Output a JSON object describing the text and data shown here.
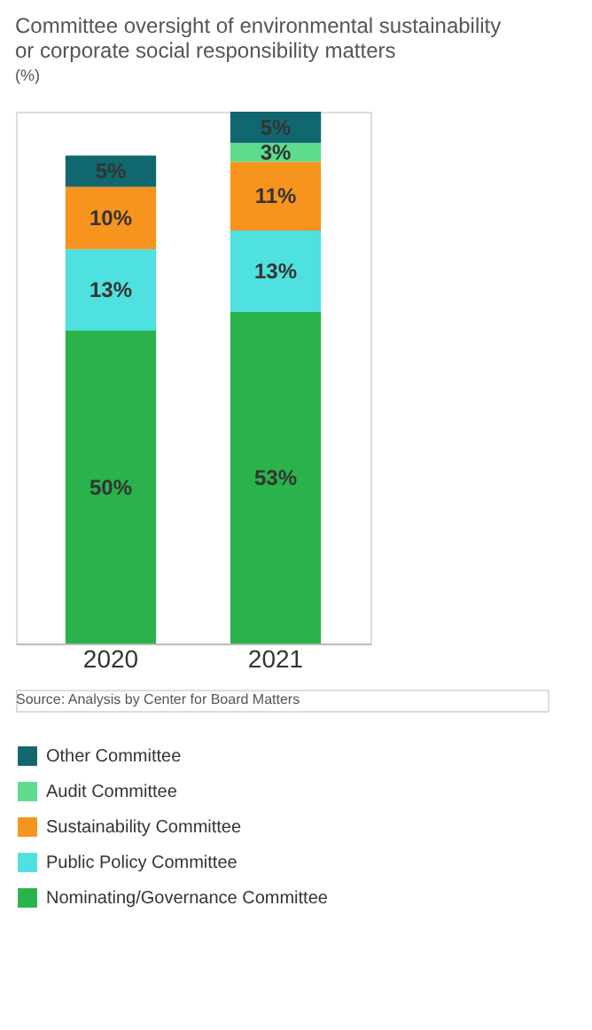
{
  "chart_data": {
    "type": "bar",
    "stacked": true,
    "title": "Committee oversight of environmental sustainability or corporate social responsibility matters",
    "subtitle": "(%)",
    "categories": [
      "2020",
      "2021"
    ],
    "legend": "bottom",
    "grid": false,
    "series": [
      {
        "name": "Nominating/Governance Committee",
        "color": "#2ab34b",
        "values": [
          50,
          53
        ],
        "value_labels": [
          "50%",
          "53%"
        ]
      },
      {
        "name": "Public Policy Committee",
        "color": "#4fe0e0",
        "values": [
          13,
          13
        ],
        "value_labels": [
          "13%",
          "13%"
        ]
      },
      {
        "name": "Sustainability Committee",
        "color": "#f7941d",
        "values": [
          10,
          11
        ],
        "value_labels": [
          "10%",
          "11%"
        ]
      },
      {
        "name": "Audit Committee",
        "color": "#5edb8c",
        "values": [
          null,
          3
        ],
        "value_labels": [
          null,
          "3%"
        ]
      },
      {
        "name": "Other Committee",
        "color": "#10676e",
        "values": [
          5,
          5
        ],
        "value_labels": [
          "5%",
          "5%"
        ]
      }
    ],
    "annotations": [
      "Source: Analysis by Center for Board Matters"
    ]
  }
}
